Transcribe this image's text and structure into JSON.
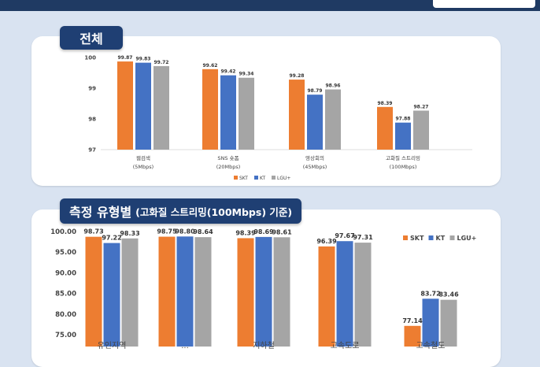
{
  "colors": {
    "SKT": "#ed7d31",
    "KT": "#4472c4",
    "LGU+": "#a5a5a5"
  },
  "header": {
    "title1": "전체",
    "title2_main": "측정 유형별",
    "title2_sub": "(고화질 스트리밍(100Mbps) 기준)"
  },
  "chart_data": [
    {
      "type": "bar",
      "categories": [
        [
          "웹검색",
          "(5Mbps)"
        ],
        [
          "SNS 숏폼",
          "(20Mbps)"
        ],
        [
          "영상회의",
          "(45Mbps)"
        ],
        [
          "고화질 스트리밍",
          "(100Mbps)"
        ]
      ],
      "series": [
        {
          "name": "SKT",
          "values": [
            99.87,
            99.62,
            99.28,
            98.39
          ]
        },
        {
          "name": "KT",
          "values": [
            99.83,
            99.42,
            98.79,
            97.88
          ]
        },
        {
          "name": "LGU+",
          "values": [
            99.72,
            99.34,
            98.96,
            98.27
          ]
        }
      ],
      "ylim": [
        97,
        100
      ],
      "yticks": [
        "97",
        "98",
        "99",
        "100"
      ],
      "legend": "bottom-center"
    },
    {
      "type": "bar",
      "categories": [
        "유인지역",
        "...",
        "지하철",
        "고속도로",
        "고속철도"
      ],
      "series": [
        {
          "name": "SKT",
          "values": [
            98.73,
            98.75,
            98.39,
            96.39,
            77.14
          ]
        },
        {
          "name": "KT",
          "values": [
            97.22,
            98.8,
            98.69,
            97.67,
            83.72
          ]
        },
        {
          "name": "LGU+",
          "values": [
            98.33,
            98.64,
            98.61,
            97.31,
            83.46
          ]
        }
      ],
      "ylim": [
        75,
        100
      ],
      "yticks": [
        "75.00",
        "80.00",
        "85.00",
        "90.00",
        "95.00",
        "100.00"
      ],
      "legend": "top-right"
    }
  ]
}
